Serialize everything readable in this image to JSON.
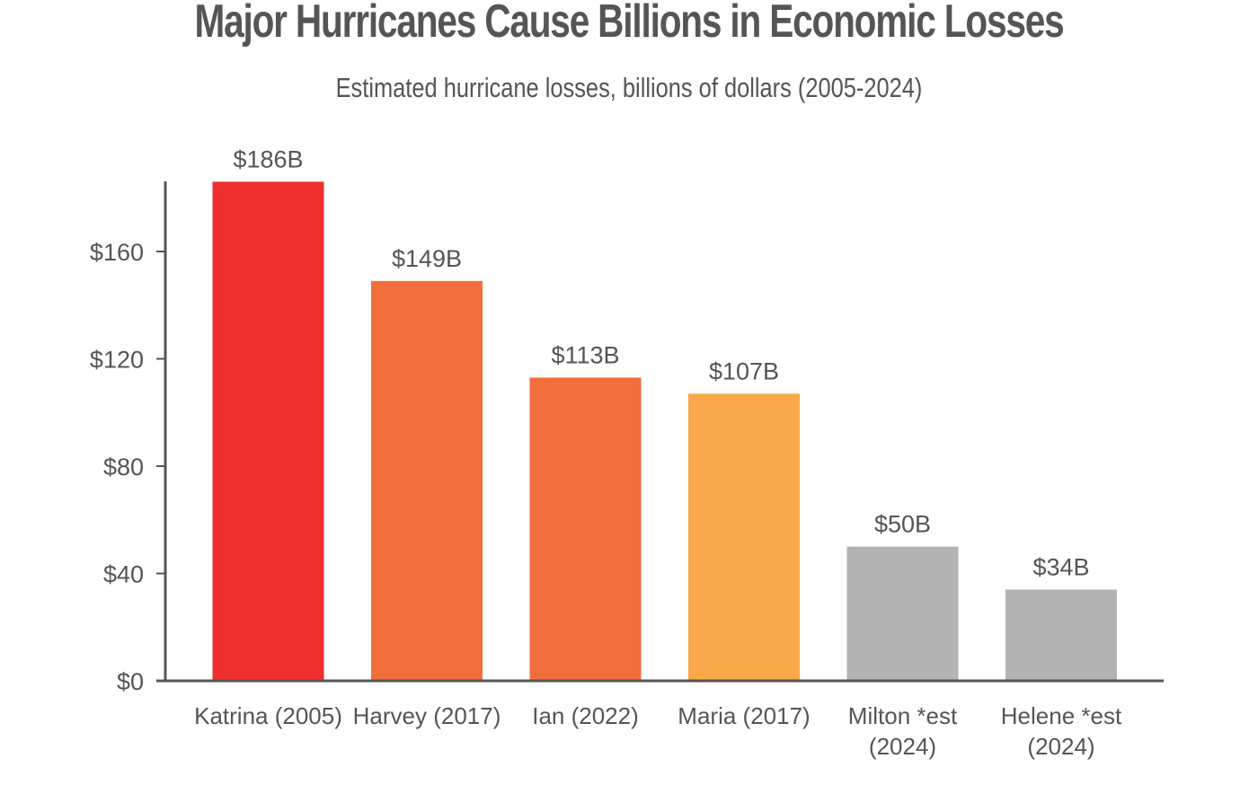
{
  "chart_data": {
    "type": "bar",
    "title": "Major Hurricanes Cause Billions in Economic Losses",
    "subtitle": "Estimated hurricane losses, billions of dollars (2005-2024)",
    "categories": [
      [
        "Katrina (2005)"
      ],
      [
        "Harvey (2017)"
      ],
      [
        "Ian (2022)"
      ],
      [
        "Maria (2017)"
      ],
      [
        "Milton *est",
        "(2024)"
      ],
      [
        "Helene *est",
        "(2024)"
      ]
    ],
    "values": [
      186,
      149,
      113,
      107,
      50,
      34
    ],
    "data_labels": [
      "$186B",
      "$149B",
      "$113B",
      "$107B",
      "$50B",
      "$34B"
    ],
    "bar_colors": [
      "#ef2e2e",
      "#f26e3d",
      "#f26e3d",
      "#f9a84a",
      "#b3b3b3",
      "#b3b3b3"
    ],
    "yticks": [
      0,
      40,
      80,
      120,
      160
    ],
    "ytick_labels": [
      "$0",
      "$40",
      "$80",
      "$120",
      "$160"
    ],
    "ylim": [
      0,
      186
    ],
    "grid": false,
    "legend": "none",
    "text_color": "#555555",
    "axis_color": "#555555"
  }
}
